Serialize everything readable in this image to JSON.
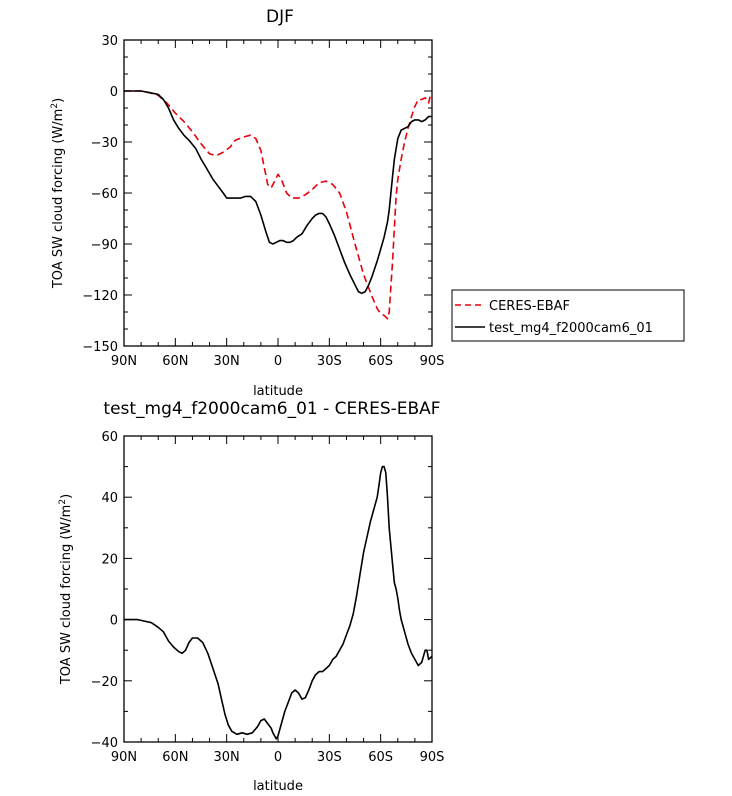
{
  "chart_data": [
    {
      "type": "line",
      "title": "DJF",
      "xlabel": "latitude",
      "ylabel": "TOA SW cloud forcing (W/m",
      "ylabel_sup": "2",
      "ylabel_close": ")",
      "xlim": [
        90,
        -90
      ],
      "ylim": [
        -150,
        30
      ],
      "xticks": [
        {
          "value": 90,
          "label": "90N"
        },
        {
          "value": 60,
          "label": "60N"
        },
        {
          "value": 30,
          "label": "30N"
        },
        {
          "value": 0,
          "label": "0"
        },
        {
          "value": -30,
          "label": "30S"
        },
        {
          "value": -60,
          "label": "60S"
        },
        {
          "value": -90,
          "label": "90S"
        }
      ],
      "yticks": [
        30,
        0,
        -30,
        -60,
        -90,
        -120,
        -150
      ],
      "legend_position": "right",
      "series": [
        {
          "name": "CERES-EBAF",
          "color": "#e8000b",
          "dash": "dashed",
          "points": [
            [
              90,
              0
            ],
            [
              80,
              0
            ],
            [
              75,
              -1
            ],
            [
              70,
              -2.5
            ],
            [
              65,
              -7
            ],
            [
              60,
              -13
            ],
            [
              55,
              -18
            ],
            [
              50,
              -24
            ],
            [
              45,
              -31
            ],
            [
              40,
              -37
            ],
            [
              36,
              -38
            ],
            [
              32,
              -36
            ],
            [
              28,
              -33
            ],
            [
              25,
              -29
            ],
            [
              20,
              -27
            ],
            [
              16,
              -26
            ],
            [
              13,
              -28
            ],
            [
              10,
              -35
            ],
            [
              8,
              -45
            ],
            [
              6,
              -55
            ],
            [
              4,
              -57
            ],
            [
              2,
              -53
            ],
            [
              0,
              -49
            ],
            [
              -2,
              -52
            ],
            [
              -5,
              -60
            ],
            [
              -8,
              -63
            ],
            [
              -12,
              -63
            ],
            [
              -16,
              -61
            ],
            [
              -20,
              -58
            ],
            [
              -24,
              -54
            ],
            [
              -28,
              -53
            ],
            [
              -32,
              -55
            ],
            [
              -36,
              -60
            ],
            [
              -40,
              -71
            ],
            [
              -45,
              -90
            ],
            [
              -50,
              -108
            ],
            [
              -55,
              -121
            ],
            [
              -58,
              -128
            ],
            [
              -60,
              -131
            ],
            [
              -62,
              -132
            ],
            [
              -63,
              -133
            ],
            [
              -64,
              -134
            ],
            [
              -65,
              -130
            ],
            [
              -66,
              -115
            ],
            [
              -67,
              -100
            ],
            [
              -68,
              -80
            ],
            [
              -69,
              -62
            ],
            [
              -70,
              -52
            ],
            [
              -72,
              -40
            ],
            [
              -74,
              -30
            ],
            [
              -76,
              -22
            ],
            [
              -78,
              -15
            ],
            [
              -80,
              -9
            ],
            [
              -82,
              -5
            ],
            [
              -84,
              -5
            ],
            [
              -86,
              -4
            ],
            [
              -88,
              -7
            ],
            [
              -89,
              -3
            ],
            [
              -90,
              -2
            ]
          ]
        },
        {
          "name": "test_mg4_f2000cam6_01",
          "color": "#000000",
          "dash": "solid",
          "points": [
            [
              90,
              0
            ],
            [
              80,
              0
            ],
            [
              75,
              -1
            ],
            [
              70,
              -2
            ],
            [
              67,
              -5
            ],
            [
              64,
              -10
            ],
            [
              61,
              -17
            ],
            [
              58,
              -22
            ],
            [
              55,
              -26
            ],
            [
              52,
              -29
            ],
            [
              48,
              -34
            ],
            [
              45,
              -40
            ],
            [
              42,
              -45
            ],
            [
              38,
              -52
            ],
            [
              35,
              -56
            ],
            [
              32,
              -60
            ],
            [
              30,
              -63
            ],
            [
              26,
              -63
            ],
            [
              22,
              -63
            ],
            [
              19,
              -62
            ],
            [
              16,
              -62
            ],
            [
              13,
              -65
            ],
            [
              10,
              -73
            ],
            [
              7,
              -83
            ],
            [
              5,
              -89
            ],
            [
              3,
              -90
            ],
            [
              1,
              -89
            ],
            [
              -1,
              -88
            ],
            [
              -3,
              -88
            ],
            [
              -5,
              -89
            ],
            [
              -7,
              -89
            ],
            [
              -9,
              -88
            ],
            [
              -11,
              -86
            ],
            [
              -14,
              -84
            ],
            [
              -17,
              -79
            ],
            [
              -20,
              -75
            ],
            [
              -22,
              -73
            ],
            [
              -24,
              -72
            ],
            [
              -26,
              -72
            ],
            [
              -28,
              -74
            ],
            [
              -30,
              -78
            ],
            [
              -33,
              -85
            ],
            [
              -36,
              -93
            ],
            [
              -39,
              -101
            ],
            [
              -42,
              -108
            ],
            [
              -45,
              -114
            ],
            [
              -47,
              -118
            ],
            [
              -49,
              -119
            ],
            [
              -51,
              -118
            ],
            [
              -53,
              -114
            ],
            [
              -55,
              -109
            ],
            [
              -58,
              -100
            ],
            [
              -60,
              -93
            ],
            [
              -62,
              -86
            ],
            [
              -64,
              -77
            ],
            [
              -65,
              -70
            ],
            [
              -66,
              -60
            ],
            [
              -67,
              -50
            ],
            [
              -68,
              -40
            ],
            [
              -70,
              -28
            ],
            [
              -72,
              -23
            ],
            [
              -74,
              -22
            ],
            [
              -76,
              -21
            ],
            [
              -78,
              -18
            ],
            [
              -80,
              -17
            ],
            [
              -82,
              -17
            ],
            [
              -84,
              -18
            ],
            [
              -86,
              -17
            ],
            [
              -88,
              -15
            ],
            [
              -90,
              -15
            ]
          ]
        }
      ]
    },
    {
      "type": "line",
      "title": "test_mg4_f2000cam6_01 - CERES-EBAF",
      "xlabel": "latitude",
      "ylabel": "TOA SW cloud forcing (W/m",
      "ylabel_sup": "2",
      "ylabel_close": ")",
      "xlim": [
        90,
        -90
      ],
      "ylim": [
        -40,
        60
      ],
      "xticks": [
        {
          "value": 90,
          "label": "90N"
        },
        {
          "value": 60,
          "label": "60N"
        },
        {
          "value": 30,
          "label": "30N"
        },
        {
          "value": 0,
          "label": "0"
        },
        {
          "value": -30,
          "label": "30S"
        },
        {
          "value": -60,
          "label": "60S"
        },
        {
          "value": -90,
          "label": "90S"
        }
      ],
      "yticks": [
        60,
        40,
        20,
        0,
        -20,
        -40
      ],
      "series": [
        {
          "name": "",
          "color": "#000000",
          "dash": "solid",
          "points": [
            [
              90,
              0
            ],
            [
              82,
              0
            ],
            [
              78,
              -0.5
            ],
            [
              74,
              -1
            ],
            [
              70,
              -2.5
            ],
            [
              67,
              -4
            ],
            [
              64,
              -7
            ],
            [
              61,
              -9
            ],
            [
              58,
              -10.5
            ],
            [
              56,
              -11
            ],
            [
              54,
              -10
            ],
            [
              52,
              -7.5
            ],
            [
              50,
              -6
            ],
            [
              47,
              -6
            ],
            [
              44,
              -7.5
            ],
            [
              41,
              -11
            ],
            [
              38,
              -16
            ],
            [
              35,
              -21
            ],
            [
              33,
              -26
            ],
            [
              31,
              -31
            ],
            [
              29,
              -34.5
            ],
            [
              27,
              -36.5
            ],
            [
              24,
              -37.5
            ],
            [
              21,
              -37
            ],
            [
              18,
              -37.5
            ],
            [
              15,
              -37
            ],
            [
              12,
              -35
            ],
            [
              10,
              -33
            ],
            [
              8,
              -32.5
            ],
            [
              6,
              -34
            ],
            [
              4,
              -35.5
            ],
            [
              3,
              -37
            ],
            [
              2,
              -38
            ],
            [
              1,
              -39
            ],
            [
              0,
              -38
            ],
            [
              -2,
              -34
            ],
            [
              -4,
              -30
            ],
            [
              -6,
              -27
            ],
            [
              -8,
              -24
            ],
            [
              -10,
              -23
            ],
            [
              -12,
              -24
            ],
            [
              -14,
              -26
            ],
            [
              -16,
              -25.5
            ],
            [
              -18,
              -23
            ],
            [
              -20,
              -20
            ],
            [
              -22,
              -18
            ],
            [
              -24,
              -17
            ],
            [
              -26,
              -17
            ],
            [
              -28,
              -16
            ],
            [
              -30,
              -15
            ],
            [
              -32,
              -13
            ],
            [
              -34,
              -12
            ],
            [
              -36,
              -10
            ],
            [
              -38,
              -8
            ],
            [
              -40,
              -5
            ],
            [
              -42,
              -2
            ],
            [
              -44,
              2
            ],
            [
              -46,
              8
            ],
            [
              -48,
              15
            ],
            [
              -50,
              22
            ],
            [
              -52,
              27
            ],
            [
              -54,
              32
            ],
            [
              -56,
              36
            ],
            [
              -58,
              40
            ],
            [
              -59,
              44
            ],
            [
              -60,
              48
            ],
            [
              -61,
              50
            ],
            [
              -62,
              50
            ],
            [
              -63,
              48
            ],
            [
              -64,
              40
            ],
            [
              -65,
              30
            ],
            [
              -66,
              24
            ],
            [
              -67,
              18
            ],
            [
              -68,
              12
            ],
            [
              -69,
              10
            ],
            [
              -70,
              7
            ],
            [
              -71,
              3
            ],
            [
              -72,
              0
            ],
            [
              -74,
              -4
            ],
            [
              -76,
              -8
            ],
            [
              -78,
              -11
            ],
            [
              -80,
              -13
            ],
            [
              -82,
              -15
            ],
            [
              -84,
              -14
            ],
            [
              -86,
              -10
            ],
            [
              -87,
              -10
            ],
            [
              -88,
              -13
            ],
            [
              -90,
              -12
            ]
          ]
        }
      ]
    }
  ]
}
